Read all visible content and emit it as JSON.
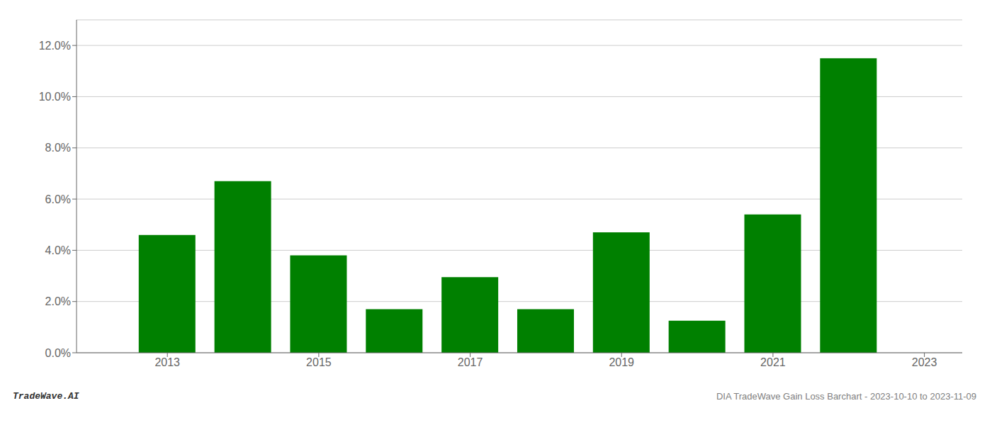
{
  "chart_data": {
    "type": "bar",
    "x": [
      2013,
      2014,
      2015,
      2016,
      2017,
      2018,
      2019,
      2020,
      2021,
      2022
    ],
    "values": [
      0.046,
      0.067,
      0.038,
      0.017,
      0.0295,
      0.017,
      0.047,
      0.0125,
      0.054,
      0.115
    ],
    "color": "#008000",
    "xlim": [
      2011.8,
      2023.5
    ],
    "xticks": [
      2013,
      2015,
      2017,
      2019,
      2021,
      2023
    ],
    "ylim": [
      0,
      0.13
    ],
    "yticks": [
      {
        "value": 0.0,
        "label": "0.0%"
      },
      {
        "value": 0.02,
        "label": "2.0%"
      },
      {
        "value": 0.04,
        "label": "4.0%"
      },
      {
        "value": 0.06,
        "label": "6.0%"
      },
      {
        "value": 0.08,
        "label": "8.0%"
      },
      {
        "value": 0.1,
        "label": "10.0%"
      },
      {
        "value": 0.12,
        "label": "12.0%"
      }
    ],
    "grid": true,
    "annotations": [
      "TradeWave.AI",
      "DIA TradeWave Gain Loss Barchart - 2023-10-10 to 2023-11-09"
    ]
  }
}
